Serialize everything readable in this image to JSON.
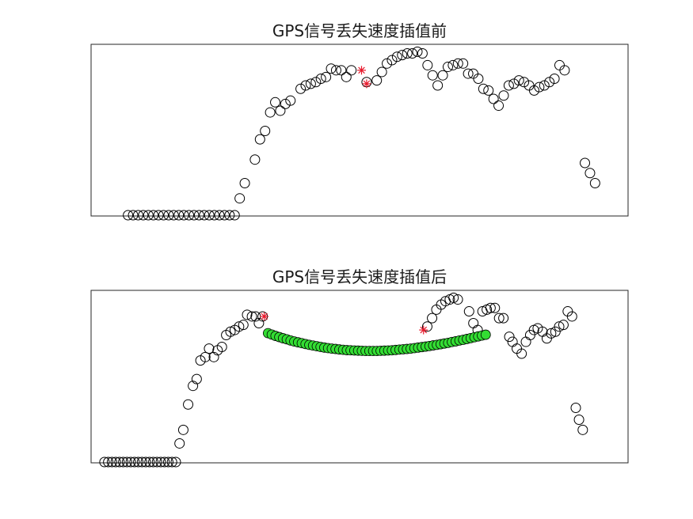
{
  "chart_data": [
    {
      "type": "scatter",
      "title": "GPS信号丢失速度插值前",
      "xlabel": "",
      "ylabel": "",
      "xlim": [
        0,
        100
      ],
      "ylim": [
        0,
        100
      ],
      "axes_visible": false,
      "grid": false,
      "series": [
        {
          "marker": "circle",
          "color": "#000000",
          "points": [
            [
              4,
              0
            ],
            [
              5,
              0
            ],
            [
              6,
              0
            ],
            [
              7,
              0
            ],
            [
              8,
              0
            ],
            [
              9,
              0
            ],
            [
              10,
              0
            ],
            [
              11,
              0
            ],
            [
              12,
              0
            ],
            [
              13,
              0
            ],
            [
              14,
              0
            ],
            [
              15,
              0
            ],
            [
              16,
              0
            ],
            [
              17,
              0
            ],
            [
              18,
              0
            ],
            [
              19,
              0
            ],
            [
              20,
              0
            ],
            [
              21,
              0
            ],
            [
              22,
              0
            ],
            [
              23,
              0
            ],
            [
              24,
              0
            ],
            [
              25,
              0
            ],
            [
              26,
              10
            ],
            [
              27,
              19
            ],
            [
              29,
              33
            ],
            [
              30,
              45
            ],
            [
              31,
              50
            ],
            [
              32,
              61
            ],
            [
              33,
              67
            ],
            [
              34,
              62
            ],
            [
              35,
              66
            ],
            [
              36,
              68
            ],
            [
              38,
              75
            ],
            [
              39,
              77
            ],
            [
              40,
              78
            ],
            [
              41,
              79
            ],
            [
              42,
              81
            ],
            [
              43,
              82
            ],
            [
              44,
              87
            ],
            [
              45,
              86
            ],
            [
              46,
              86
            ],
            [
              47,
              82
            ],
            [
              48,
              86
            ],
            [
              51,
              79
            ],
            [
              53,
              80
            ],
            [
              54,
              85
            ],
            [
              55,
              90
            ],
            [
              56,
              92
            ],
            [
              57,
              94
            ],
            [
              58,
              95
            ],
            [
              59,
              96
            ],
            [
              60,
              96
            ],
            [
              61,
              97
            ],
            [
              62,
              96
            ],
            [
              63,
              89
            ],
            [
              64,
              83
            ],
            [
              65,
              77
            ],
            [
              66,
              83
            ],
            [
              67,
              88
            ],
            [
              68,
              89
            ],
            [
              69,
              90
            ],
            [
              70,
              90
            ],
            [
              71,
              84
            ],
            [
              72,
              84
            ],
            [
              73,
              81
            ],
            [
              74,
              75
            ],
            [
              75,
              74
            ],
            [
              76,
              69
            ],
            [
              77,
              65
            ],
            [
              78,
              71
            ],
            [
              79,
              77
            ],
            [
              80,
              78
            ],
            [
              81,
              80
            ],
            [
              82,
              79
            ],
            [
              83,
              77
            ],
            [
              84,
              74
            ],
            [
              85,
              76
            ],
            [
              86,
              77
            ],
            [
              87,
              79
            ],
            [
              88,
              81
            ],
            [
              89,
              89
            ],
            [
              90,
              86
            ],
            [
              94,
              31
            ],
            [
              95,
              25
            ],
            [
              96,
              19
            ]
          ]
        },
        {
          "marker": "star",
          "color": "#e8192c",
          "points": [
            [
              50,
              86
            ],
            [
              51,
              78
            ]
          ]
        }
      ]
    },
    {
      "type": "scatter",
      "title": "GPS信号丢失速度插值后",
      "xlabel": "",
      "ylabel": "",
      "xlim": [
        0,
        100
      ],
      "ylim": [
        0,
        100
      ],
      "axes_visible": false,
      "grid": false,
      "series": [
        {
          "marker": "circle",
          "color": "#000000",
          "points": [
            [
              2.5,
              0
            ],
            [
              3.2,
              0
            ],
            [
              3.9,
              0
            ],
            [
              4.6,
              0
            ],
            [
              5.3,
              0
            ],
            [
              6.0,
              0
            ],
            [
              6.7,
              0
            ],
            [
              7.4,
              0
            ],
            [
              8.1,
              0
            ],
            [
              8.8,
              0
            ],
            [
              9.5,
              0
            ],
            [
              10.2,
              0
            ],
            [
              10.9,
              0
            ],
            [
              11.6,
              0
            ],
            [
              12.3,
              0
            ],
            [
              13.0,
              0
            ],
            [
              13.7,
              0
            ],
            [
              14.4,
              0
            ],
            [
              15.1,
              0
            ],
            [
              15.8,
              0
            ],
            [
              16.5,
              11
            ],
            [
              17.2,
              19
            ],
            [
              18.1,
              34
            ],
            [
              19.0,
              45
            ],
            [
              19.7,
              49
            ],
            [
              20.4,
              60
            ],
            [
              21.3,
              62
            ],
            [
              22.0,
              67
            ],
            [
              22.9,
              62
            ],
            [
              23.6,
              66
            ],
            [
              24.4,
              68
            ],
            [
              25.2,
              75
            ],
            [
              26.0,
              77
            ],
            [
              26.8,
              78
            ],
            [
              27.6,
              80
            ],
            [
              28.4,
              81
            ],
            [
              29.1,
              87
            ],
            [
              30.0,
              86
            ],
            [
              30.7,
              86
            ],
            [
              31.3,
              82
            ],
            [
              32.0,
              86
            ],
            [
              62.7,
              80
            ],
            [
              63.6,
              85
            ],
            [
              64.4,
              90
            ],
            [
              65.3,
              93
            ],
            [
              66.1,
              95
            ],
            [
              66.9,
              96
            ],
            [
              67.6,
              97
            ],
            [
              68.4,
              96
            ],
            [
              70.5,
              89
            ],
            [
              71.3,
              82
            ],
            [
              72.1,
              78
            ],
            [
              73.0,
              89
            ],
            [
              73.8,
              90
            ],
            [
              74.5,
              91
            ],
            [
              75.3,
              91
            ],
            [
              76.1,
              85
            ],
            [
              76.9,
              85
            ],
            [
              78.0,
              74
            ],
            [
              78.6,
              71
            ],
            [
              79.4,
              67
            ],
            [
              80.3,
              64
            ],
            [
              81.1,
              71
            ],
            [
              81.9,
              75
            ],
            [
              82.6,
              78
            ],
            [
              83.3,
              79
            ],
            [
              84.2,
              77
            ],
            [
              85.0,
              73
            ],
            [
              85.8,
              76
            ],
            [
              86.6,
              77
            ],
            [
              87.3,
              80
            ],
            [
              88.1,
              81
            ],
            [
              88.9,
              89
            ],
            [
              89.7,
              86
            ],
            [
              90.4,
              32
            ],
            [
              91.0,
              25
            ],
            [
              91.7,
              19
            ]
          ]
        },
        {
          "marker": "circle-filled",
          "color": "#33dd33",
          "points": [
            [
              33.0,
              76.1
            ],
            [
              33.7,
              75.3
            ],
            [
              34.4,
              74.5
            ],
            [
              35.1,
              73.8
            ],
            [
              35.8,
              73.1
            ],
            [
              36.5,
              72.5
            ],
            [
              37.2,
              71.8
            ],
            [
              37.9,
              71.2
            ],
            [
              38.6,
              70.7
            ],
            [
              39.3,
              70.2
            ],
            [
              40.0,
              69.7
            ],
            [
              40.7,
              69.2
            ],
            [
              41.4,
              68.8
            ],
            [
              42.1,
              68.4
            ],
            [
              42.8,
              68.0
            ],
            [
              43.5,
              67.6
            ],
            [
              44.2,
              67.3
            ],
            [
              44.9,
              67.0
            ],
            [
              45.6,
              66.8
            ],
            [
              46.3,
              66.5
            ],
            [
              47.0,
              66.3
            ],
            [
              47.7,
              66.1
            ],
            [
              48.4,
              66.0
            ],
            [
              49.1,
              65.9
            ],
            [
              49.8,
              65.8
            ],
            [
              50.5,
              65.7
            ],
            [
              51.2,
              65.6
            ],
            [
              51.9,
              65.6
            ],
            [
              52.6,
              65.6
            ],
            [
              53.3,
              65.6
            ],
            [
              54.0,
              65.7
            ],
            [
              54.7,
              65.8
            ],
            [
              55.4,
              65.9
            ],
            [
              56.1,
              66.0
            ],
            [
              56.8,
              66.2
            ],
            [
              57.5,
              66.4
            ],
            [
              58.2,
              66.6
            ],
            [
              58.9,
              66.8
            ],
            [
              59.6,
              67.0
            ],
            [
              60.3,
              67.3
            ],
            [
              61.0,
              67.6
            ],
            [
              61.7,
              67.9
            ],
            [
              62.4,
              68.2
            ],
            [
              63.1,
              68.5
            ],
            [
              63.8,
              68.9
            ],
            [
              64.5,
              69.2
            ],
            [
              65.2,
              69.6
            ],
            [
              65.9,
              70.0
            ],
            [
              66.6,
              70.4
            ],
            [
              67.3,
              70.9
            ],
            [
              68.0,
              71.3
            ],
            [
              68.7,
              71.8
            ],
            [
              69.4,
              72.2
            ],
            [
              70.1,
              72.7
            ],
            [
              70.8,
              73.2
            ],
            [
              71.5,
              73.7
            ],
            [
              72.2,
              74.2
            ],
            [
              72.9,
              74.7
            ],
            [
              73.6,
              75.2
            ]
          ]
        },
        {
          "marker": "star",
          "color": "#e8192c",
          "points": [
            [
              32.3,
              86
            ],
            [
              62.0,
              78
            ]
          ]
        }
      ]
    }
  ]
}
